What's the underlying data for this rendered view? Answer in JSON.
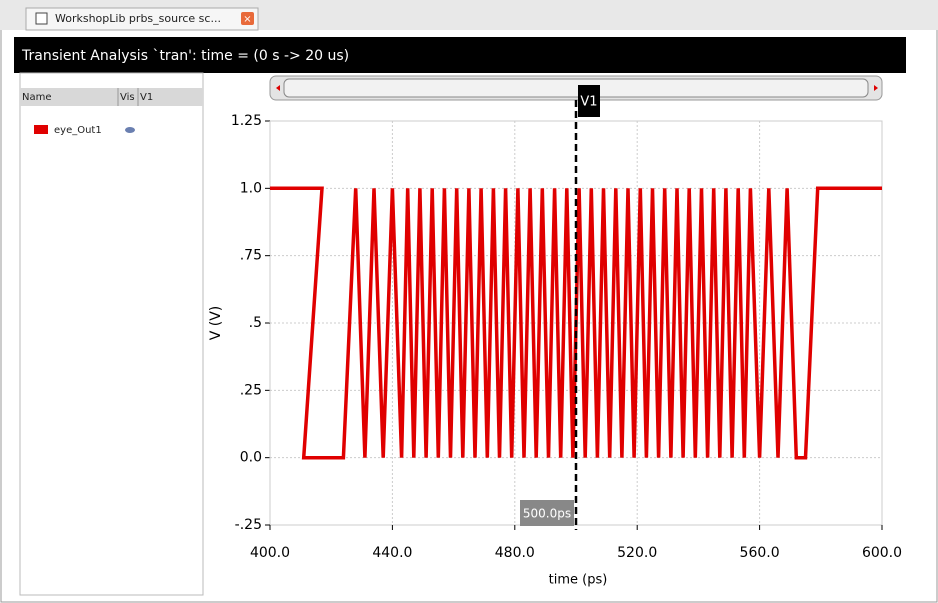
{
  "tab": {
    "title": "WorkshopLib prbs_source sc..."
  },
  "window_title": "Transient Analysis `tran': time = (0 s -> 20 us)",
  "panel": {
    "columns": [
      "Name",
      "Vis",
      "V1"
    ]
  },
  "chart_data": {
    "type": "line",
    "xlabel": "time (ps)",
    "ylabel": "V (V)",
    "xlim": [
      400,
      600
    ],
    "xticks": [
      {
        "value": 400,
        "label": "400.0"
      },
      {
        "value": 440,
        "label": "440.0"
      },
      {
        "value": 480,
        "label": "480.0"
      },
      {
        "value": 520,
        "label": "520.0"
      },
      {
        "value": 560,
        "label": "560.0"
      },
      {
        "value": 600,
        "label": "600.0"
      }
    ],
    "ylim": [
      -0.25,
      1.25
    ],
    "yticks": [
      {
        "value": -0.25,
        "label": "-.25"
      },
      {
        "value": 0,
        "label": "0.0"
      },
      {
        "value": 0.25,
        "label": ".25"
      },
      {
        "value": 0.5,
        "label": ".5"
      },
      {
        "value": 0.75,
        "label": ".75"
      },
      {
        "value": 1,
        "label": "1.0"
      },
      {
        "value": 1.25,
        "label": "1.25"
      }
    ],
    "grid": true,
    "cursor": {
      "name": "V1",
      "value": 500,
      "label": "500.0ps"
    },
    "series": [
      {
        "name": "eye_Out1",
        "color": "#e00000",
        "x": [
          400,
          417,
          411,
          424,
          428,
          431,
          434,
          437,
          440,
          443,
          445,
          447,
          449,
          451,
          453,
          455,
          457,
          459,
          461,
          463,
          465,
          467,
          469,
          471,
          473,
          475,
          477,
          479,
          481,
          483,
          485,
          487,
          489,
          491,
          493,
          495,
          497,
          499,
          501,
          503,
          505,
          507,
          509,
          511,
          513,
          515,
          517,
          519,
          521,
          523,
          525,
          527,
          529,
          531,
          533,
          535,
          537,
          539,
          541,
          543,
          545,
          547,
          549,
          551,
          553,
          555,
          557,
          560,
          563,
          566,
          569,
          572,
          575,
          579,
          600
        ],
        "values": [
          1,
          1,
          0,
          0,
          1,
          0,
          1,
          0,
          1,
          0,
          1,
          0,
          1,
          0,
          1,
          0,
          1,
          0,
          1,
          0,
          1,
          0,
          1,
          0,
          1,
          0,
          1,
          0,
          1,
          0,
          1,
          0,
          1,
          0,
          1,
          0,
          1,
          0,
          1,
          0,
          1,
          0,
          1,
          0,
          1,
          0,
          1,
          0,
          1,
          0,
          1,
          0,
          1,
          0,
          1,
          0,
          1,
          0,
          1,
          0,
          1,
          0,
          1,
          0,
          1,
          0,
          1,
          0,
          1,
          0,
          1,
          0,
          0,
          1,
          1
        ]
      }
    ]
  }
}
